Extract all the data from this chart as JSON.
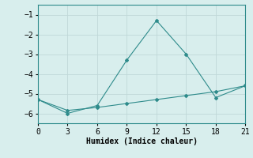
{
  "line1_x": [
    0,
    3,
    6,
    9,
    12,
    15,
    18,
    21
  ],
  "line1_y": [
    -5.3,
    -6.0,
    -5.6,
    -3.3,
    -1.3,
    -3.0,
    -5.2,
    -4.6
  ],
  "line2_x": [
    0,
    3,
    6,
    9,
    12,
    15,
    18,
    21
  ],
  "line2_y": [
    -5.3,
    -5.85,
    -5.7,
    -5.5,
    -5.3,
    -5.1,
    -4.9,
    -4.6
  ],
  "line_color": "#2e8b8b",
  "marker": "D",
  "marker_size": 2,
  "xlabel": "Humidex (Indice chaleur)",
  "xlim": [
    0,
    21
  ],
  "ylim": [
    -6.5,
    -0.5
  ],
  "yticks": [
    -6,
    -5,
    -4,
    -3,
    -2,
    -1
  ],
  "xticks": [
    0,
    3,
    6,
    9,
    12,
    15,
    18,
    21
  ],
  "bg_color": "#d8eeed",
  "grid_color": "#c0d8d8",
  "font_family": "monospace",
  "xlabel_fontsize": 7,
  "tick_fontsize": 7
}
